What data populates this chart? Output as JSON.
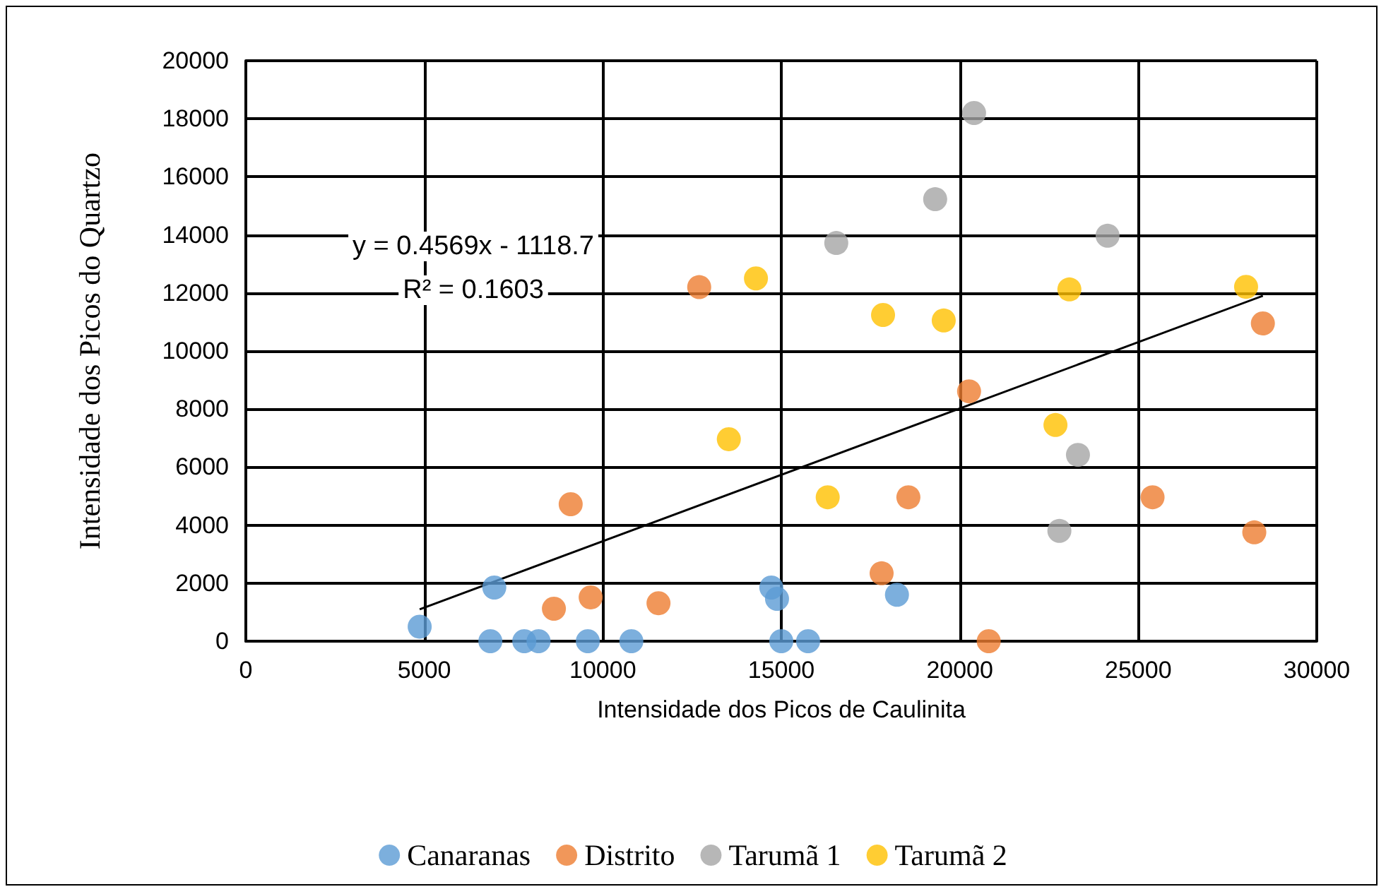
{
  "chart_data": {
    "type": "scatter",
    "xlabel": "Intensidade dos Picos de Caulinita",
    "ylabel": "Intensidade dos Picos do Quartzo",
    "xlim": [
      0,
      30000
    ],
    "xticks": [
      0,
      5000,
      10000,
      15000,
      20000,
      25000,
      30000
    ],
    "ylim": [
      0,
      20000
    ],
    "yticks": [
      0,
      2000,
      4000,
      6000,
      8000,
      10000,
      12000,
      14000,
      16000,
      18000,
      20000
    ],
    "grid": true,
    "legend": "bottom",
    "marker": "circle",
    "annotations": [
      "y = 0.4569x - 1118.7",
      "R² = 0.1603"
    ],
    "series": [
      {
        "name": "Canaranas",
        "color": "#5b9bd5",
        "x": [
          4870,
          6960,
          6850,
          7800,
          8200,
          9580,
          10800,
          14720,
          14880,
          15000,
          15750,
          18240
        ],
        "values": [
          500,
          1850,
          0,
          0,
          0,
          0,
          0,
          1850,
          1460,
          0,
          0,
          1600
        ]
      },
      {
        "name": "Distrito",
        "color": "#ed7d31",
        "x": [
          12700,
          9100,
          8630,
          9660,
          11560,
          20260,
          18560,
          17810,
          20810,
          25400,
          28250,
          28490
        ],
        "values": [
          12200,
          4720,
          1120,
          1510,
          1310,
          8610,
          4960,
          2340,
          0,
          4960,
          3750,
          10950
        ]
      },
      {
        "name": "Tarumã 1",
        "color": "#a5a5a5",
        "x": [
          20400,
          19310,
          16540,
          24140,
          23310,
          22790
        ],
        "values": [
          18200,
          15230,
          13720,
          13970,
          6420,
          3800
        ]
      },
      {
        "name": "Tarumã 2",
        "color": "#ffc000",
        "x": [
          14290,
          13530,
          17850,
          19550,
          23070,
          28020,
          22680,
          16300
        ],
        "values": [
          12500,
          6960,
          11240,
          11050,
          12120,
          12210,
          7450,
          4960
        ]
      },
      {
        "type": "line",
        "color": "#000000",
        "marker": "none",
        "x": [
          4870,
          28490
        ],
        "values": [
          1100,
          11900
        ]
      }
    ]
  }
}
